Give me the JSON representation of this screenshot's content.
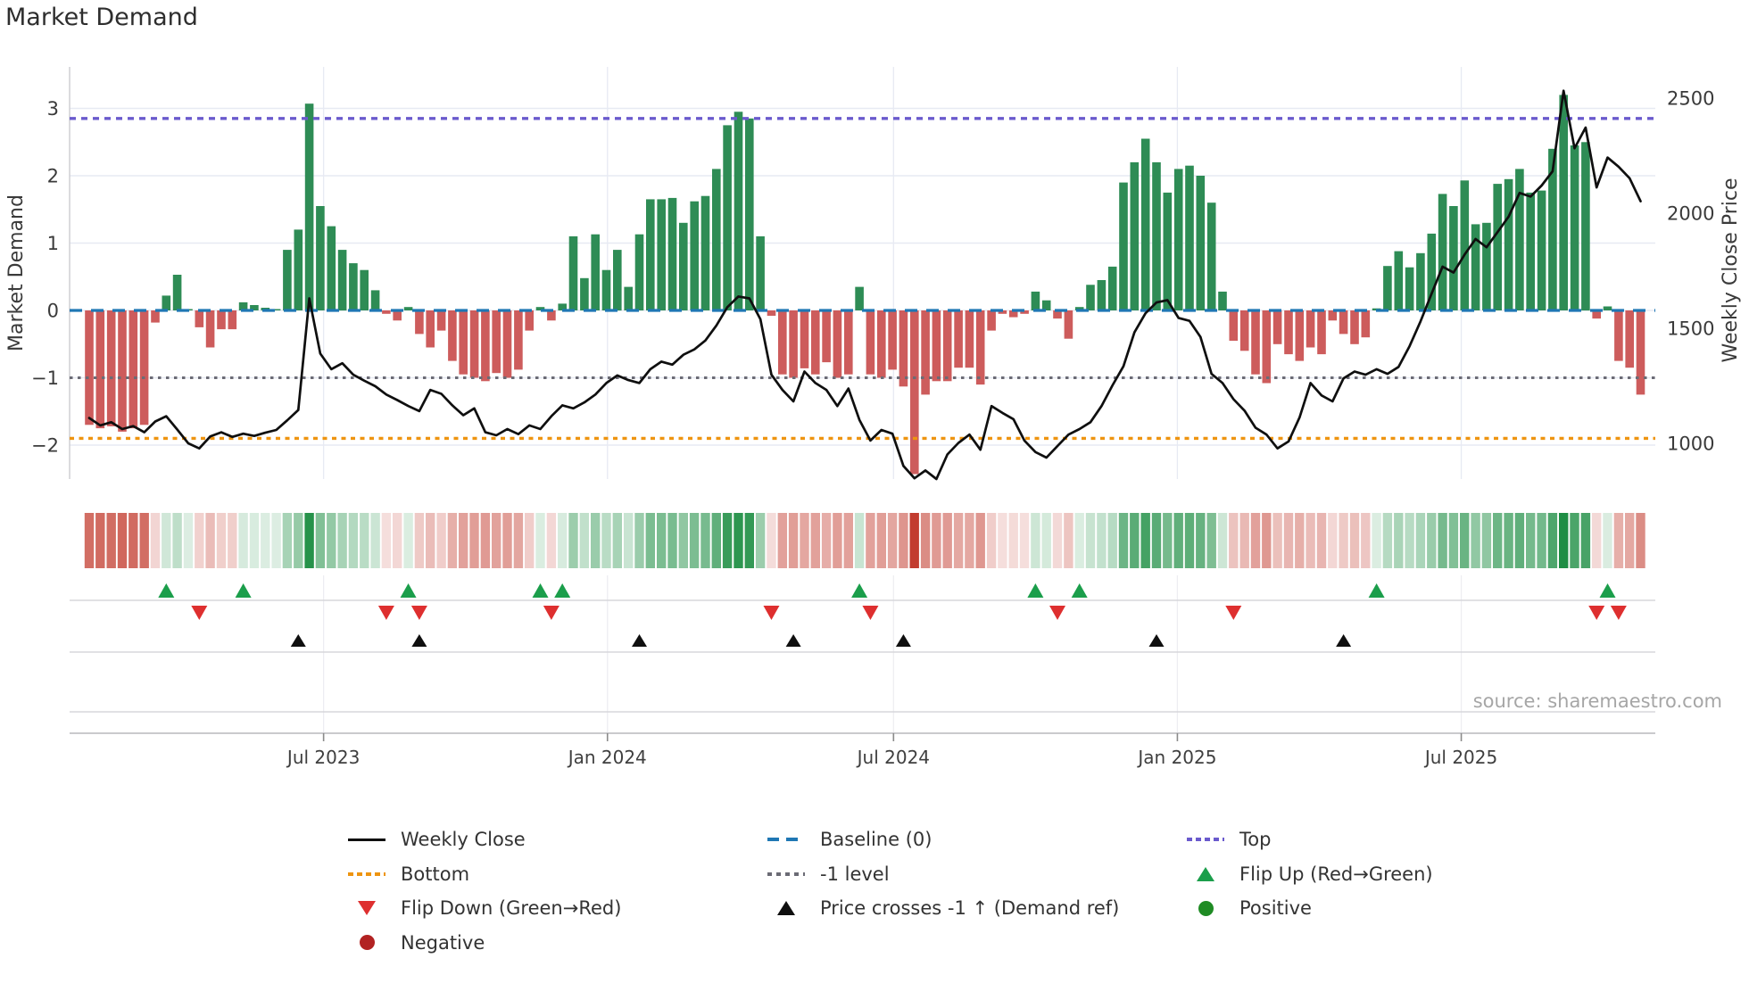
{
  "title": "Market Demand",
  "source_note": "source: sharemaestro.com",
  "axes": {
    "left_label": "Market Demand",
    "right_label": "Weekly Close Price",
    "left_tick_values": [
      3,
      2,
      1,
      0,
      -1,
      -2
    ],
    "left_tick_labels": [
      "3",
      "2",
      "1",
      "0",
      "−1",
      "−2"
    ],
    "right_tick_values": [
      2500,
      2000,
      1500,
      1000
    ],
    "x_tick_labels": [
      "Jul 2023",
      "Jan 2024",
      "Jul 2024",
      "Jan 2025",
      "Jul 2025"
    ],
    "x_tick_weeks": [
      21.3,
      47.1,
      73.1,
      98.9,
      124.7
    ]
  },
  "chart_data": {
    "type": "bar+line",
    "title": "Market Demand",
    "x_unit": "week",
    "weeks": 142,
    "y_left": {
      "label": "Market Demand",
      "ticks": [
        3,
        2,
        1,
        0,
        -1,
        -2
      ],
      "range": [
        -2.5,
        3.62
      ]
    },
    "y_right": {
      "label": "Weekly Close Price",
      "ticks": [
        2500,
        2000,
        1500,
        1000
      ],
      "range": [
        845,
        2636
      ]
    },
    "levels": {
      "top": 2.85,
      "baseline": 0,
      "minus_one": -1,
      "bottom": -1.9
    },
    "series": [
      {
        "name": "Demand",
        "type": "bar",
        "axis": "left",
        "values": [
          -1.7,
          -1.75,
          -1.72,
          -1.8,
          -1.75,
          -1.7,
          -0.18,
          0.22,
          0.53,
          0.02,
          -0.25,
          -0.55,
          -0.28,
          -0.28,
          0.12,
          0.08,
          0.04,
          0.02,
          0.9,
          1.2,
          3.07,
          1.55,
          1.25,
          0.9,
          0.7,
          0.6,
          0.3,
          -0.05,
          -0.15,
          0.05,
          -0.35,
          -0.55,
          -0.3,
          -0.75,
          -0.95,
          -1.0,
          -1.05,
          -0.93,
          -1.0,
          -0.88,
          -0.3,
          0.05,
          -0.15,
          0.1,
          1.1,
          0.48,
          1.13,
          0.6,
          0.9,
          0.35,
          1.13,
          1.65,
          1.65,
          1.67,
          1.3,
          1.62,
          1.7,
          2.1,
          2.75,
          2.95,
          2.85,
          1.1,
          -0.08,
          -0.95,
          -1.0,
          -0.86,
          -0.95,
          -0.77,
          -1.0,
          -0.95,
          0.35,
          -0.95,
          -1.0,
          -0.88,
          -1.13,
          -2.43,
          -1.25,
          -1.05,
          -1.05,
          -0.85,
          -0.85,
          -1.1,
          -0.3,
          -0.05,
          -0.1,
          -0.05,
          0.28,
          0.15,
          -0.12,
          -0.42,
          0.05,
          0.38,
          0.45,
          0.65,
          1.9,
          2.2,
          2.55,
          2.2,
          1.75,
          2.1,
          2.15,
          2.0,
          1.6,
          0.28,
          -0.45,
          -0.6,
          -0.95,
          -1.08,
          -0.5,
          -0.65,
          -0.75,
          -0.55,
          -0.65,
          -0.15,
          -0.35,
          -0.5,
          -0.4,
          0.03,
          0.66,
          0.88,
          0.64,
          0.85,
          1.14,
          1.73,
          1.55,
          1.93,
          1.28,
          1.3,
          1.88,
          1.95,
          2.1,
          1.75,
          1.78,
          2.4,
          3.2,
          2.45,
          2.5,
          -0.12,
          0.06,
          -0.75,
          -0.85,
          -1.25
        ]
      },
      {
        "name": "Weekly Close",
        "type": "line",
        "axis": "right",
        "values": [
          1110,
          1078,
          1092,
          1062,
          1075,
          1048,
          1095,
          1118,
          1060,
          1000,
          978,
          1030,
          1048,
          1028,
          1042,
          1032,
          1046,
          1058,
          1100,
          1145,
          1630,
          1390,
          1322,
          1348,
          1298,
          1272,
          1248,
          1212,
          1188,
          1162,
          1140,
          1232,
          1215,
          1165,
          1122,
          1152,
          1048,
          1035,
          1062,
          1040,
          1078,
          1062,
          1118,
          1165,
          1152,
          1178,
          1212,
          1262,
          1295,
          1275,
          1262,
          1322,
          1355,
          1342,
          1385,
          1408,
          1447,
          1512,
          1592,
          1638,
          1630,
          1540,
          1298,
          1232,
          1182,
          1312,
          1262,
          1232,
          1162,
          1238,
          1102,
          1012,
          1058,
          1042,
          902,
          848,
          882,
          845,
          952,
          1002,
          1038,
          972,
          1162,
          1132,
          1105,
          1012,
          962,
          938,
          988,
          1038,
          1062,
          1092,
          1162,
          1252,
          1335,
          1482,
          1565,
          1612,
          1622,
          1545,
          1532,
          1462,
          1302,
          1262,
          1192,
          1142,
          1068,
          1038,
          978,
          1008,
          1112,
          1262,
          1208,
          1182,
          1282,
          1312,
          1298,
          1322,
          1302,
          1332,
          1422,
          1530,
          1650,
          1768,
          1742,
          1820,
          1888,
          1852,
          1918,
          1985,
          2088,
          2072,
          2120,
          2182,
          2532,
          2282,
          2372,
          2112,
          2242,
          2202,
          2152,
          2052
        ]
      }
    ],
    "markers": {
      "flip_up_weeks": [
        7,
        14,
        29,
        41,
        43,
        70,
        86,
        90,
        117,
        138
      ],
      "flip_down_weeks": [
        10,
        27,
        30,
        42,
        62,
        71,
        88,
        104,
        137,
        139
      ],
      "price_cross_weeks": [
        19,
        30,
        50,
        64,
        74,
        97,
        114
      ]
    },
    "heatmap": {
      "source": "demand",
      "green_saturation_at": 3.2,
      "red_saturation_at": 2.45
    }
  },
  "legend": {
    "items": [
      {
        "label": "Weekly Close",
        "swatch": "solid-black"
      },
      {
        "label": "Baseline (0)",
        "swatch": "dash-blue"
      },
      {
        "label": "Top",
        "swatch": "dot-purple"
      },
      {
        "label": "Bottom",
        "swatch": "dot-orange"
      },
      {
        "label": "-1 level",
        "swatch": "dot-gray"
      },
      {
        "label": "Flip Up (Red→Green)",
        "swatch": "tri-up-green"
      },
      {
        "label": "Flip Down (Green→Red)",
        "swatch": "tri-down-red"
      },
      {
        "label": "Price crosses -1 ↑ (Demand ref)",
        "swatch": "tri-up-black"
      },
      {
        "label": "Positive",
        "swatch": "circle-green"
      },
      {
        "label": "Negative",
        "swatch": "circle-red"
      }
    ]
  },
  "colors": {
    "bar_green": "#2E8C55",
    "bar_red": "#CD5C5C",
    "line_black": "#0f0f0f",
    "baseline_blue": "#1f77b4",
    "top_purple": "#6A5ACD",
    "bottom_orange": "#EE9410",
    "minus_one_gray": "#6B6B75",
    "flip_up_green": "#1B9E4B",
    "flip_down_red": "#DE2F2F",
    "positive_green": "#1F8B24",
    "negative_red": "#B22222",
    "heat_green": "#1E8E44",
    "heat_red": "#C23B2E",
    "grid": "#E7EAF3",
    "panel_line": "#D7D7DB",
    "axis_line": "#C2C2C6",
    "tick_text": "#3A3A3A",
    "source_text": "#A6A6A6"
  }
}
